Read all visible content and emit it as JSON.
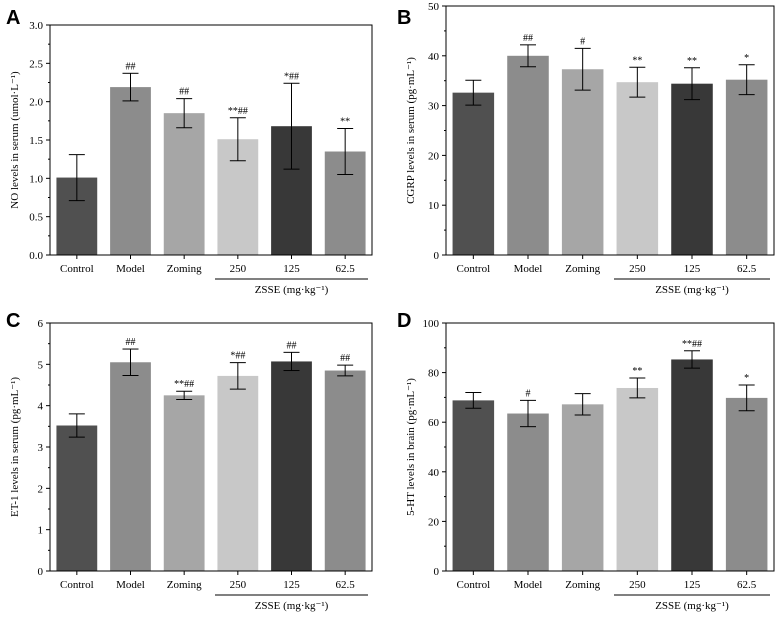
{
  "chart_data": [
    {
      "type": "bar",
      "panel": "A",
      "ylabel": "NO levels in serum (umol·L⁻¹)",
      "ylim": [
        0,
        3.0
      ],
      "yticks": [
        "0.0",
        "0.5",
        "1.0",
        "1.5",
        "2.0",
        "2.5",
        "3.0"
      ],
      "categories": [
        "Control",
        "Model",
        "Zoming",
        "250",
        "125",
        "62.5"
      ],
      "values": [
        1.01,
        2.19,
        1.85,
        1.51,
        1.68,
        1.35
      ],
      "errors": [
        0.3,
        0.18,
        0.19,
        0.28,
        0.56,
        0.3
      ],
      "significance": [
        "",
        "##",
        "##",
        "**##",
        "*##",
        "**"
      ],
      "group_label": "ZSSE (mg·kg⁻¹)",
      "colors": [
        "#505050",
        "#8c8c8c",
        "#a6a6a6",
        "#c8c8c8",
        "#383838",
        "#8c8c8c"
      ]
    },
    {
      "type": "bar",
      "panel": "B",
      "ylabel": "CGRP levels in serum (pg·mL⁻¹)",
      "ylim": [
        0,
        50
      ],
      "yticks": [
        "0",
        "10",
        "20",
        "30",
        "40",
        "50"
      ],
      "categories": [
        "Control",
        "Model",
        "Zoming",
        "250",
        "125",
        "62.5"
      ],
      "values": [
        32.6,
        40.0,
        37.3,
        34.7,
        34.4,
        35.2
      ],
      "errors": [
        2.5,
        2.2,
        4.2,
        3.0,
        3.2,
        3.0
      ],
      "significance": [
        "",
        "##",
        "#",
        "**",
        "**",
        "*"
      ],
      "group_label": "ZSSE (mg·kg⁻¹)",
      "colors": [
        "#505050",
        "#8c8c8c",
        "#a6a6a6",
        "#c8c8c8",
        "#383838",
        "#8c8c8c"
      ]
    },
    {
      "type": "bar",
      "panel": "C",
      "ylabel": "ET-1 levels in serum (pg·mL⁻¹)",
      "ylim": [
        0,
        6
      ],
      "yticks": [
        "0",
        "1",
        "2",
        "3",
        "4",
        "5",
        "6"
      ],
      "categories": [
        "Control",
        "Model",
        "Zoming",
        "250",
        "125",
        "62.5"
      ],
      "values": [
        3.52,
        5.05,
        4.25,
        4.72,
        5.07,
        4.85
      ],
      "errors": [
        0.28,
        0.32,
        0.1,
        0.32,
        0.22,
        0.13
      ],
      "significance": [
        "",
        "##",
        "**##",
        "*##",
        "##",
        "##"
      ],
      "group_label": "ZSSE (mg·kg⁻¹)",
      "colors": [
        "#505050",
        "#8c8c8c",
        "#a6a6a6",
        "#c8c8c8",
        "#383838",
        "#8c8c8c"
      ]
    },
    {
      "type": "bar",
      "panel": "D",
      "ylabel": "5-HT levels in brain (pg·mL⁻¹)",
      "ylim": [
        0,
        100
      ],
      "yticks": [
        "0",
        "20",
        "40",
        "60",
        "80",
        "100"
      ],
      "categories": [
        "Control",
        "Model",
        "Zoming",
        "250",
        "125",
        "62.5"
      ],
      "values": [
        68.8,
        63.5,
        67.2,
        73.8,
        85.3,
        69.8
      ],
      "errors": [
        3.2,
        5.3,
        4.3,
        4.0,
        3.5,
        5.2
      ],
      "significance": [
        "",
        "#",
        "",
        "**",
        "**##",
        "*"
      ],
      "group_label": "ZSSE (mg·kg⁻¹)",
      "colors": [
        "#505050",
        "#8c8c8c",
        "#a6a6a6",
        "#c8c8c8",
        "#383838",
        "#8c8c8c"
      ]
    }
  ]
}
